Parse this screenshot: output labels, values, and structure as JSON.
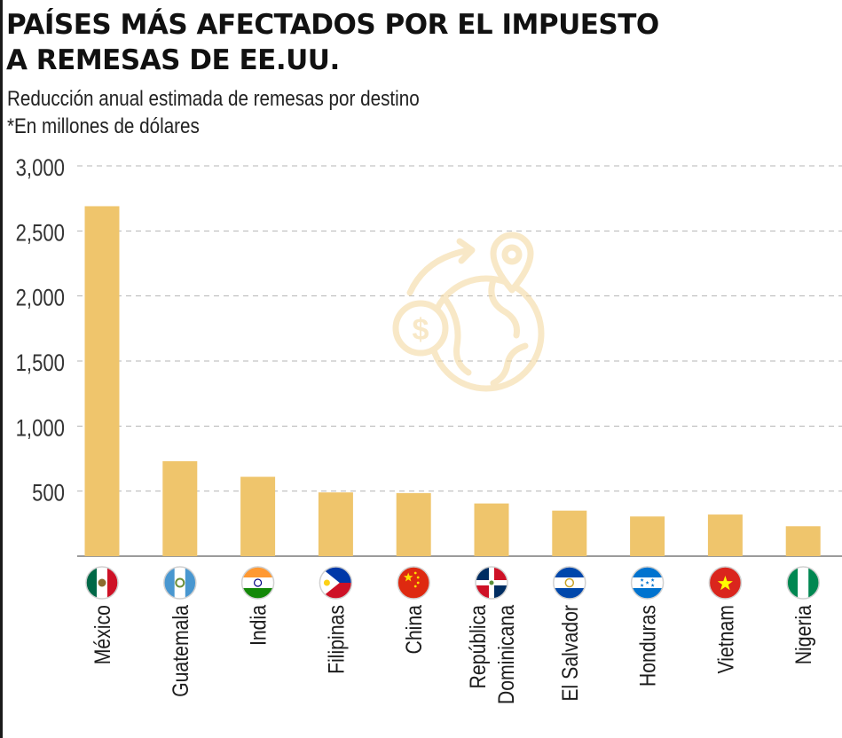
{
  "header": {
    "title_line1": "PAÍSES MÁS AFECTADOS POR EL IMPUESTO",
    "title_line2": "A REMESAS DE EE.UU.",
    "subtitle_line1": "Reducción anual estimada de remesas por destino",
    "subtitle_line2": "*En millones de dólares"
  },
  "chart_data": {
    "type": "bar",
    "title": "PAÍSES MÁS AFECTADOS POR EL IMPUESTO A REMESAS DE EE.UU.",
    "subtitle": "Reducción anual estimada de remesas por destino",
    "ylabel": "*En millones de dólares",
    "xlabel": "",
    "ylim": [
      0,
      3000
    ],
    "yticks": [
      500,
      1000,
      1500,
      2000,
      2500,
      3000
    ],
    "ytick_labels": [
      "500",
      "1,000",
      "1,500",
      "2,000",
      "2,500",
      "3,000"
    ],
    "grid": "horizontal dashed",
    "bar_color": "#EFC56C",
    "categories": [
      [
        "México"
      ],
      [
        "Guatemala"
      ],
      [
        "India"
      ],
      [
        "Filipinas"
      ],
      [
        "China"
      ],
      [
        "República",
        "Dominicana"
      ],
      [
        "El Salvador"
      ],
      [
        "Honduras"
      ],
      [
        "Vietnam"
      ],
      [
        "Nigeria"
      ]
    ],
    "values": [
      2690,
      730,
      610,
      490,
      485,
      405,
      350,
      305,
      320,
      230
    ],
    "flags": [
      "mexico",
      "guatemala",
      "india",
      "philippines",
      "china",
      "dominican-republic",
      "el-salvador",
      "honduras",
      "vietnam",
      "nigeria"
    ]
  }
}
